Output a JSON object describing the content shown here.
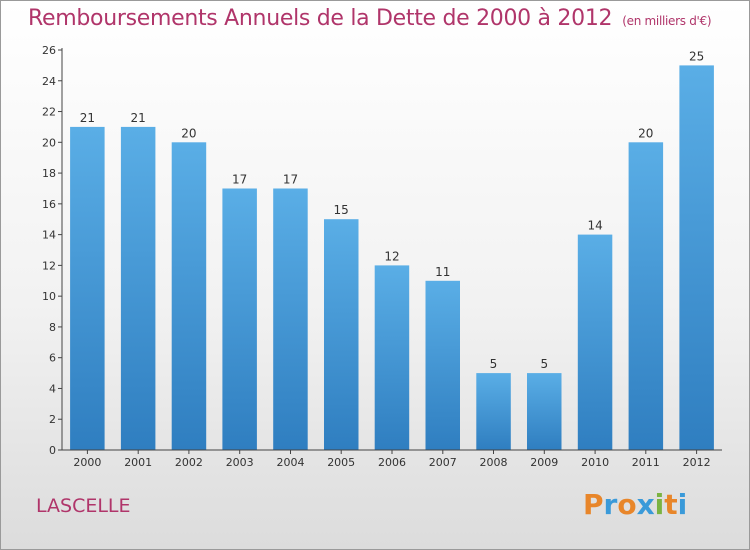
{
  "chart_data": {
    "type": "bar",
    "title": "Remboursements Annuels de la Dette de 2000 à 2012",
    "unit_label": "(en milliers d'€)",
    "categories": [
      "2000",
      "2001",
      "2002",
      "2003",
      "2004",
      "2005",
      "2006",
      "2007",
      "2008",
      "2009",
      "2010",
      "2011",
      "2012"
    ],
    "values": [
      21,
      21,
      20,
      17,
      17,
      15,
      12,
      11,
      5,
      5,
      14,
      20,
      25
    ],
    "ylim": [
      0,
      26
    ],
    "yticks": [
      0,
      2,
      4,
      6,
      8,
      10,
      12,
      14,
      16,
      18,
      20,
      22,
      24,
      26
    ],
    "xlabel": "",
    "ylabel": "",
    "bar_color": "#4a9fd9",
    "grid": false
  },
  "location": "LASCELLE",
  "logo": {
    "letters": [
      "P",
      "r",
      "o",
      "x",
      "i",
      "t",
      "i"
    ],
    "colors": [
      "#e8862a",
      "#3a9ad9",
      "#e8862a",
      "#3a9ad9",
      "#7bb342",
      "#e8862a",
      "#3a9ad9"
    ]
  },
  "colors": {
    "title": "#b0356a",
    "axis": "#444444"
  }
}
